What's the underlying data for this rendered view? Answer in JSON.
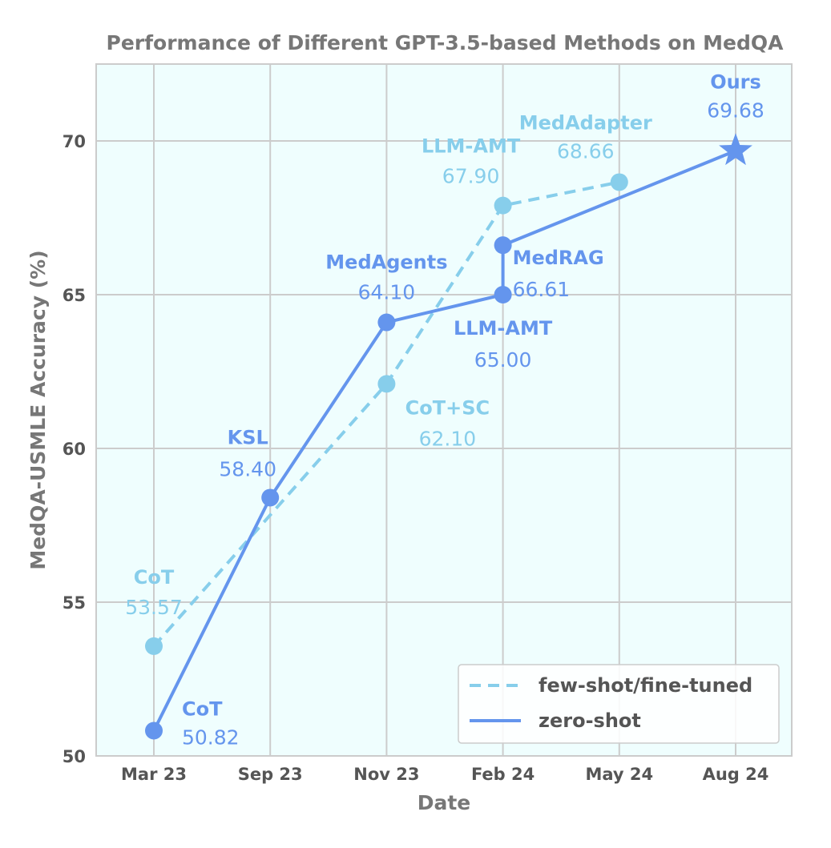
{
  "chart_data": {
    "type": "line",
    "title": "Performance of Different GPT-3.5-based Methods on MedQA",
    "xlabel": "Date",
    "ylabel": "MedQA-USMLE Accuracy (%)",
    "categories": [
      "Mar 23",
      "Sep 23",
      "Nov 23",
      "Feb 24",
      "May 24",
      "Aug 24"
    ],
    "ylim": [
      50,
      72.5
    ],
    "yticks": [
      "50",
      "55",
      "60",
      "65",
      "70"
    ],
    "grid": true,
    "legend_position": "lower-right",
    "background_color": "#effefe",
    "series": [
      {
        "name": "few-shot/fine-tuned",
        "color": "#87ceeb",
        "style": "dashed",
        "points": [
          {
            "x": "Mar 23",
            "y": 53.57,
            "method": "CoT",
            "value_label": "53.57"
          },
          {
            "x": "Nov 23",
            "y": 62.1,
            "method": "CoT+SC",
            "value_label": "62.10"
          },
          {
            "x": "Feb 24",
            "y": 67.9,
            "method": "LLM-AMT",
            "value_label": "67.90"
          },
          {
            "x": "May 24",
            "y": 68.66,
            "method": "MedAdapter",
            "value_label": "68.66"
          }
        ]
      },
      {
        "name": "zero-shot",
        "color": "#6495ed",
        "style": "solid",
        "points": [
          {
            "x": "Mar 23",
            "y": 50.82,
            "method": "CoT",
            "value_label": "50.82"
          },
          {
            "x": "Sep 23",
            "y": 58.4,
            "method": "KSL",
            "value_label": "58.40"
          },
          {
            "x": "Nov 23",
            "y": 64.1,
            "method": "MedAgents",
            "value_label": "64.10"
          },
          {
            "x": "Feb 24",
            "y": 65.0,
            "method": "LLM-AMT",
            "value_label": "65.00"
          },
          {
            "x": "Feb 24",
            "y": 66.61,
            "method": "MedRAG",
            "value_label": "66.61"
          },
          {
            "x": "Aug 24",
            "y": 69.68,
            "method": "Ours",
            "value_label": "69.68",
            "marker": "star"
          }
        ]
      }
    ]
  }
}
